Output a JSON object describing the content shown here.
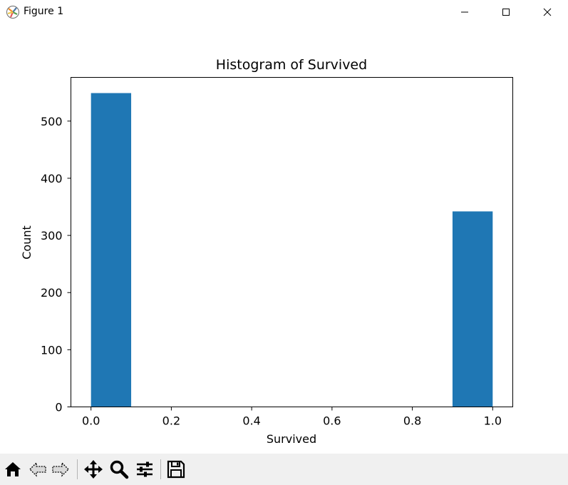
{
  "window": {
    "title": "Figure 1",
    "app_icon": "matplotlib-figure-icon"
  },
  "window_controls": {
    "minimize_icon": "minimize-icon",
    "maximize_icon": "maximize-icon",
    "close_icon": "close-icon"
  },
  "toolbar": {
    "items": [
      {
        "name": "home-icon"
      },
      {
        "name": "back-arrow-icon"
      },
      {
        "name": "forward-arrow-icon"
      },
      {
        "name": "pan-move-icon"
      },
      {
        "name": "zoom-magnifier-icon"
      },
      {
        "name": "configure-subplots-icon"
      },
      {
        "name": "save-floppy-icon"
      }
    ]
  },
  "colors": {
    "bar": "#1f77b4",
    "toolbar_bg": "#f0f0f0"
  },
  "chart_data": {
    "type": "bar",
    "title": "Histogram of Survived",
    "xlabel": "Survived",
    "ylabel": "Count",
    "bins": [
      {
        "x0": 0.0,
        "x1": 0.1,
        "count": 549
      },
      {
        "x0": 0.1,
        "x1": 0.2,
        "count": 0
      },
      {
        "x0": 0.2,
        "x1": 0.3,
        "count": 0
      },
      {
        "x0": 0.3,
        "x1": 0.4,
        "count": 0
      },
      {
        "x0": 0.4,
        "x1": 0.5,
        "count": 0
      },
      {
        "x0": 0.5,
        "x1": 0.6,
        "count": 0
      },
      {
        "x0": 0.6,
        "x1": 0.7,
        "count": 0
      },
      {
        "x0": 0.7,
        "x1": 0.8,
        "count": 0
      },
      {
        "x0": 0.8,
        "x1": 0.9,
        "count": 0
      },
      {
        "x0": 0.9,
        "x1": 1.0,
        "count": 342
      }
    ],
    "xlim": [
      -0.05,
      1.05
    ],
    "ylim": [
      0,
      576.45
    ],
    "xticks": [
      0.0,
      0.2,
      0.4,
      0.6,
      0.8,
      1.0
    ],
    "xtick_labels": [
      "0.0",
      "0.2",
      "0.4",
      "0.6",
      "0.8",
      "1.0"
    ],
    "yticks": [
      0,
      100,
      200,
      300,
      400,
      500
    ],
    "ytick_labels": [
      "0",
      "100",
      "200",
      "300",
      "400",
      "500"
    ],
    "grid": false,
    "legend": "none"
  }
}
